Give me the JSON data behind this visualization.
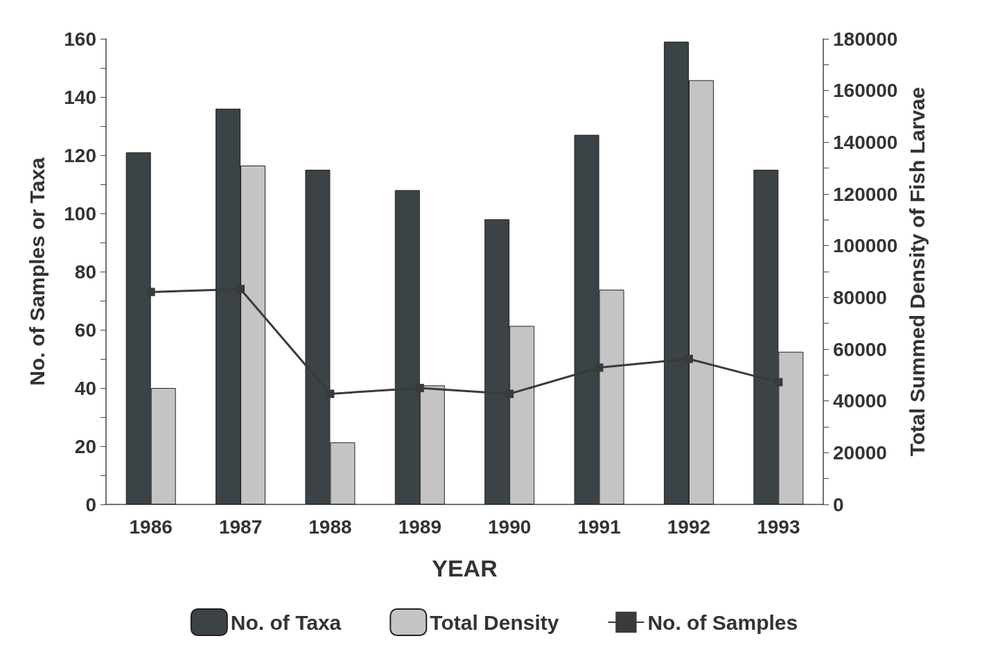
{
  "chart_data": {
    "type": "bar",
    "xlabel": "YEAR",
    "ylabel": "No. of Samples or Taxa",
    "y2label": "Total Summed Density of Fish Larvae",
    "categories": [
      "1986",
      "1987",
      "1988",
      "1989",
      "1990",
      "1991",
      "1992",
      "1993"
    ],
    "series": [
      {
        "name": "No. of Taxa",
        "color": "#3b4347",
        "values": [
          121,
          136,
          115,
          108,
          98,
          127,
          159,
          115
        ]
      },
      {
        "name": "Total Density",
        "color": "#c4c4c4",
        "axis": "y2",
        "values": [
          45000,
          131000,
          24000,
          46000,
          69000,
          83000,
          164000,
          59000
        ]
      },
      {
        "name": "No. of Samples",
        "type": "line",
        "color": "#3a3a3a",
        "marker": "square",
        "values": [
          73,
          74,
          38,
          40,
          38,
          47,
          50,
          42
        ]
      }
    ],
    "ylim": [
      0,
      160
    ],
    "yticks": [
      0,
      {
        "value": 10,
        "label": null
      },
      20,
      {
        "value": 30,
        "label": null
      },
      40,
      {
        "value": 50,
        "label": null
      },
      60,
      {
        "value": 70,
        "label": null
      },
      80,
      {
        "value": 90,
        "label": null
      },
      100,
      {
        "value": 110,
        "label": null
      },
      120,
      {
        "value": 130,
        "label": null
      },
      140,
      {
        "value": 150,
        "label": null
      },
      160
    ],
    "y2lim": [
      0,
      180000
    ],
    "y2ticks": [
      0,
      {
        "value": 10000,
        "label": null
      },
      20000,
      {
        "value": 30000,
        "label": null
      },
      40000,
      {
        "value": 50000,
        "label": null
      },
      60000,
      {
        "value": 70000,
        "label": null
      },
      80000,
      {
        "value": 90000,
        "label": null
      },
      100000,
      {
        "value": 110000,
        "label": null
      },
      120000,
      {
        "value": 130000,
        "label": null
      },
      140000,
      {
        "value": 150000,
        "label": null
      },
      160000,
      {
        "value": 170000,
        "label": null
      },
      180000
    ],
    "grid": false,
    "legend": "bottom"
  }
}
